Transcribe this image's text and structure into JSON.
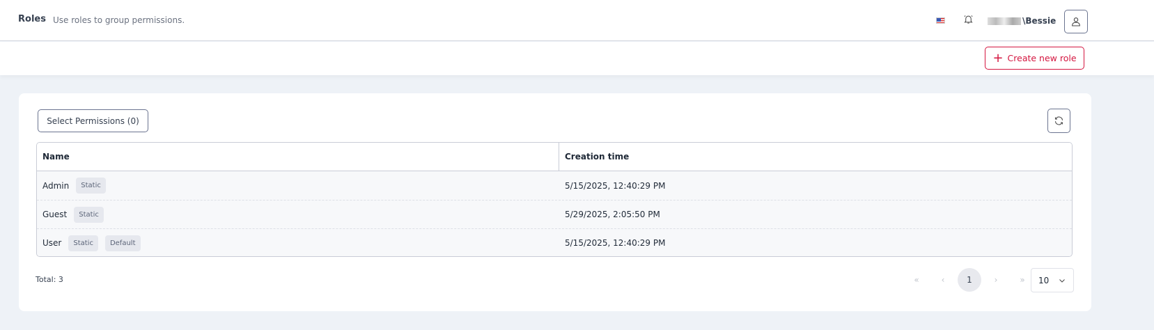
{
  "header": {
    "title": "Roles",
    "subtitle": "Use roles to group permissions.",
    "language_icon": "us-flag-icon",
    "username": "\\Bessie"
  },
  "toolbar": {
    "create_label": "Create new role",
    "accent": "#d4153f"
  },
  "main": {
    "select_permissions_label": "Select Permissions (0)",
    "columns": [
      "Name",
      "Creation time"
    ],
    "rows": [
      {
        "name": "Admin",
        "badges": [
          "Static"
        ],
        "created": "5/15/2025, 12:40:29 PM"
      },
      {
        "name": "Guest",
        "badges": [
          "Static"
        ],
        "created": "5/29/2025, 2:05:50 PM"
      },
      {
        "name": "User",
        "badges": [
          "Static",
          "Default"
        ],
        "created": "5/15/2025, 12:40:29 PM"
      }
    ],
    "total": "Total: 3",
    "pagination": {
      "first": "«",
      "prev": "‹",
      "current": "1",
      "next": "›",
      "last": "»",
      "page_size": "10"
    }
  }
}
